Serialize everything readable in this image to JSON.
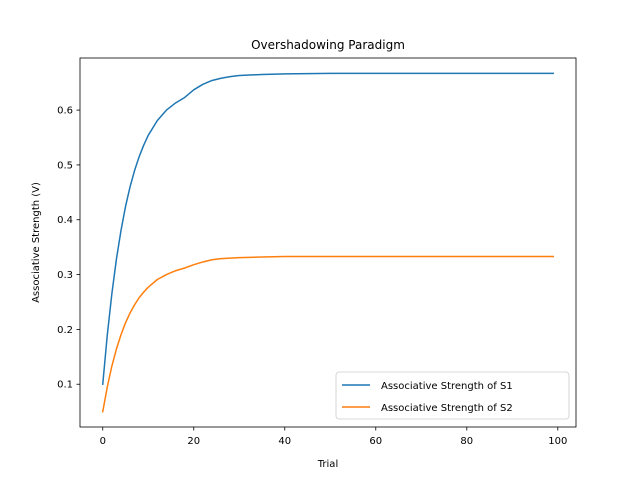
{
  "chart_data": {
    "type": "line",
    "title": "Overshadowing Paradigm",
    "xlabel": "Trial",
    "ylabel": "Associative Strength (V)",
    "xlim": [
      -5,
      104
    ],
    "ylim": [
      0.022,
      0.695
    ],
    "x_ticks": [
      {
        "value": 0,
        "label": "0"
      },
      {
        "value": 20,
        "label": "20"
      },
      {
        "value": 40,
        "label": "40"
      },
      {
        "value": 60,
        "label": "60"
      },
      {
        "value": 80,
        "label": "80"
      },
      {
        "value": 100,
        "label": "100"
      }
    ],
    "y_ticks": [
      {
        "value": 0.1,
        "label": "0.1"
      },
      {
        "value": 0.2,
        "label": "0.2"
      },
      {
        "value": 0.3,
        "label": "0.3"
      },
      {
        "value": 0.4,
        "label": "0.4"
      },
      {
        "value": 0.5,
        "label": "0.5"
      },
      {
        "value": 0.6,
        "label": "0.6"
      }
    ],
    "x": [
      0,
      1,
      2,
      3,
      4,
      5,
      6,
      7,
      8,
      9,
      10,
      12,
      14,
      16,
      18,
      20,
      22,
      24,
      26,
      28,
      30,
      35,
      40,
      50,
      60,
      70,
      80,
      90,
      99
    ],
    "series": [
      {
        "name": "Associative Strength of S1",
        "color": "#1f77b4",
        "values": [
          0.1,
          0.19,
          0.265,
          0.328,
          0.38,
          0.424,
          0.46,
          0.49,
          0.515,
          0.536,
          0.554,
          0.581,
          0.6,
          0.613,
          0.623,
          0.637,
          0.647,
          0.654,
          0.658,
          0.661,
          0.663,
          0.665,
          0.666,
          0.667,
          0.667,
          0.667,
          0.667,
          0.667,
          0.667
        ]
      },
      {
        "name": "Associative Strength of S2",
        "color": "#ff7f0e",
        "values": [
          0.05,
          0.095,
          0.133,
          0.164,
          0.19,
          0.212,
          0.23,
          0.245,
          0.258,
          0.268,
          0.277,
          0.291,
          0.3,
          0.307,
          0.312,
          0.318,
          0.323,
          0.327,
          0.329,
          0.33,
          0.331,
          0.332,
          0.333,
          0.333,
          0.333,
          0.333,
          0.333,
          0.333,
          0.333
        ]
      }
    ],
    "legend_position": "lower-right",
    "grid": false
  }
}
